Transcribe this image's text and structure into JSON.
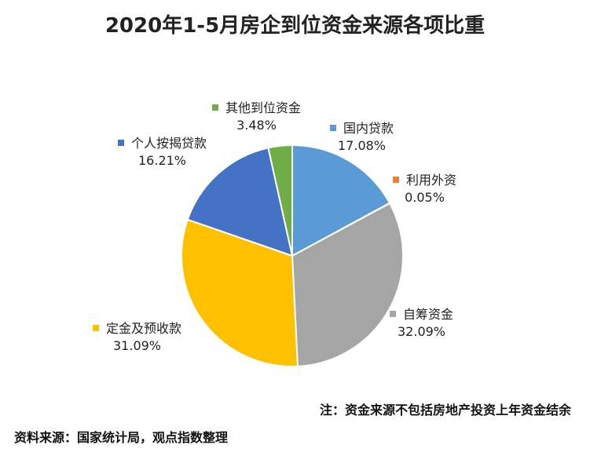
{
  "title": "2020年1-5月房企到位资金来源各项比重",
  "note": "注：资金来源不包括房地产投资上年资金结余",
  "source": "资料来源：国家统计局，观点指数整理",
  "chart_data": {
    "type": "pie",
    "title": "2020年1-5月房企到位资金来源各项比重",
    "unit": "%",
    "slices": [
      {
        "name": "国内贷款",
        "value": 17.08,
        "label": "17.08%",
        "color": "#5b9bd5"
      },
      {
        "name": "利用外资",
        "value": 0.05,
        "label": "0.05%",
        "color": "#ed7d31"
      },
      {
        "name": "自筹资金",
        "value": 32.09,
        "label": "32.09%",
        "color": "#a5a5a5"
      },
      {
        "name": "定金及预收款",
        "value": 31.09,
        "label": "31.09%",
        "color": "#ffc000"
      },
      {
        "name": "个人按揭贷款",
        "value": 16.21,
        "label": "16.21%",
        "color": "#4472c4"
      },
      {
        "name": "其他到位资金",
        "value": 3.48,
        "label": "3.48%",
        "color": "#70ad47"
      }
    ]
  }
}
